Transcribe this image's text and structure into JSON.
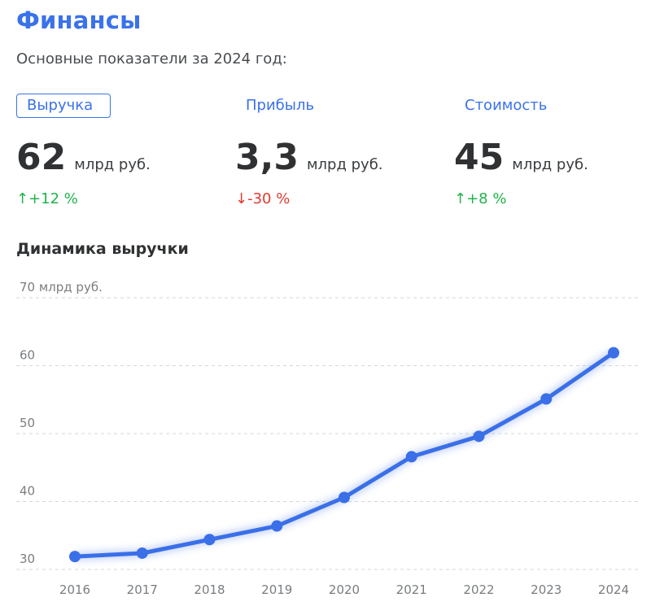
{
  "header": {
    "title": "Финансы",
    "subtitle": "Основные показатели за 2024 год:"
  },
  "tabs": [
    {
      "label": "Выручка",
      "active": true
    },
    {
      "label": "Прибыль",
      "active": false
    },
    {
      "label": "Стоимость",
      "active": false
    }
  ],
  "metrics": [
    {
      "value": "62",
      "unit": "млрд руб.",
      "change": "+12 %",
      "arrow": "↑",
      "direction": "up"
    },
    {
      "value": "3,3",
      "unit": "млрд руб.",
      "change": "-30 %",
      "arrow": "↓",
      "direction": "down"
    },
    {
      "value": "45",
      "unit": "млрд руб.",
      "change": "+8 %",
      "arrow": "↑",
      "direction": "up"
    }
  ],
  "colors": {
    "accent": "#3a72ea",
    "positive": "#1fb34c",
    "negative": "#e03a2e"
  },
  "chart_title": "Динамика выручки",
  "chart_data": {
    "type": "line",
    "x": [
      "2016",
      "2017",
      "2018",
      "2019",
      "2020",
      "2021",
      "2022",
      "2023",
      "2024"
    ],
    "series": [
      {
        "values": [
          31.9,
          32.4,
          34.4,
          36.4,
          40.6,
          46.6,
          49.6,
          55.1,
          61.9
        ]
      }
    ],
    "ylim": [
      30,
      70
    ],
    "yticks": [
      30,
      40,
      50,
      60,
      70
    ],
    "ytick_labels": [
      "30",
      "40",
      "50",
      "60",
      "70 млрд руб."
    ],
    "grid": true,
    "line_color": "#3a6fe8"
  }
}
